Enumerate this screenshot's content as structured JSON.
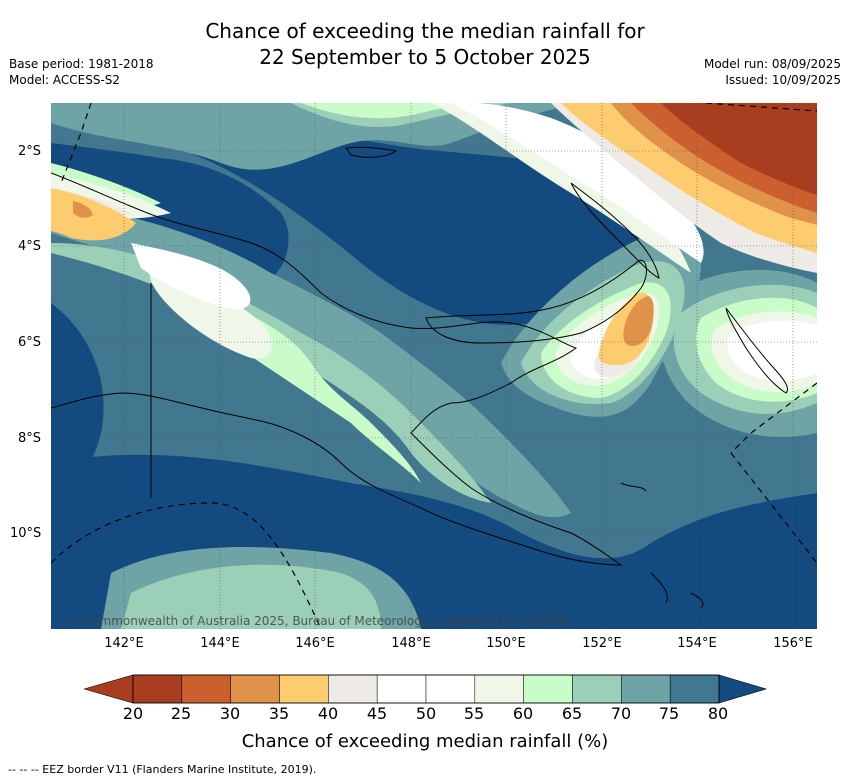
{
  "title_line1": "Chance of exceeding the median rainfall for",
  "title_line2": "22 September to 5 October 2025",
  "meta_left": [
    "Base period: 1981-2018",
    "Model: ACCESS-S2"
  ],
  "meta_right": [
    "Model run: 08/09/2025",
    "Issued: 10/09/2025"
  ],
  "lat_labels": [
    "2°S",
    "4°S",
    "6°S",
    "8°S",
    "10°S"
  ],
  "lon_labels": [
    "142°E",
    "144°E",
    "146°E",
    "148°E",
    "150°E",
    "152°E",
    "154°E",
    "156°E"
  ],
  "copyright": "© Commonwealth of Australia 2025, Bureau of Meteorology, supported by COSPPac",
  "colorbar": {
    "ticks": [
      "20",
      "25",
      "30",
      "35",
      "40",
      "45",
      "50",
      "55",
      "60",
      "65",
      "70",
      "75",
      "80"
    ],
    "colors": [
      "#a93d1f",
      "#cb602e",
      "#e0914a",
      "#fdcc6e",
      "#eeeae6",
      "#ffffff",
      "#ffffff",
      "#eef7e8",
      "#c9fcc8",
      "#9ccfb8",
      "#6ea4a6",
      "#41788f",
      "#134a80"
    ],
    "title": "Chance of exceeding median rainfall (%)"
  },
  "footnote": "-- -- -- EEZ border V11 (Flanders Marine Institute, 2019)."
}
